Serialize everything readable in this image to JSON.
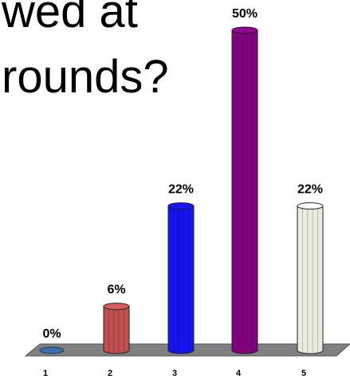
{
  "question": {
    "line_1": "wed at",
    "line_2": "rounds?"
  },
  "chart_data": {
    "type": "bar",
    "title": "",
    "xlabel": "",
    "ylabel": "",
    "categories": [
      "1",
      "2",
      "3",
      "4",
      "5"
    ],
    "values": [
      0,
      6,
      22,
      50,
      22
    ],
    "data_labels": [
      "0%",
      "6%",
      "22%",
      "50%",
      "22%"
    ],
    "ylim": [
      0,
      50
    ],
    "grid": false,
    "legend": "none",
    "colors": [
      "#3d6fa8",
      "#c0504d",
      "#1414f0",
      "#800080",
      "#ecebe0"
    ],
    "floor_color": "#808080"
  }
}
